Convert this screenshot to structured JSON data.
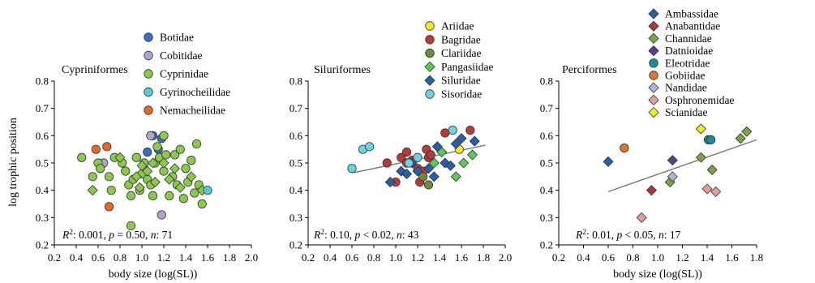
{
  "figure": {
    "ylabel": "log trophic position"
  },
  "chart_data": [
    {
      "type": "scatter",
      "title": "Cypriniformes",
      "xlabel": "body size (log(SL))",
      "xlim": [
        0.2,
        2.0
      ],
      "ylim": [
        0.2,
        0.8
      ],
      "xticks": [
        "0.2",
        "0.4",
        "0.6",
        "0.8",
        "1.0",
        "1.2",
        "1.4",
        "1.6",
        "1.8",
        "2.0"
      ],
      "yticks": [
        "0.2",
        "0.3",
        "0.4",
        "0.5",
        "0.6",
        "0.7",
        "0.8"
      ],
      "stats": {
        "r2_label": "R",
        "r2_sup": "2",
        "rest": ": 0.001, p = 0.50, n: 71"
      },
      "legend_position": "top-right",
      "series": [
        {
          "name": "Botidae",
          "marker": "circle",
          "color": "#3a6fc0",
          "points": [
            [
              1.05,
              0.54
            ],
            [
              1.1,
              0.6
            ],
            [
              1.15,
              0.55
            ],
            [
              1.18,
              0.59
            ]
          ]
        },
        {
          "name": "Cobitidae",
          "marker": "circle",
          "color": "#b0a3cc",
          "points": [
            [
              0.65,
              0.5
            ],
            [
              1.08,
              0.6
            ],
            [
              1.18,
              0.31
            ]
          ]
        },
        {
          "name": "Cyprinidae",
          "marker": "circle",
          "color": "#8cc850",
          "points": [
            [
              0.45,
              0.52
            ],
            [
              0.55,
              0.45
            ],
            [
              0.6,
              0.5
            ],
            [
              0.62,
              0.48
            ],
            [
              0.7,
              0.45
            ],
            [
              0.72,
              0.4
            ],
            [
              0.75,
              0.52
            ],
            [
              0.82,
              0.5
            ],
            [
              0.85,
              0.47
            ],
            [
              0.88,
              0.42
            ],
            [
              0.9,
              0.38
            ],
            [
              0.92,
              0.44
            ],
            [
              0.95,
              0.52
            ],
            [
              0.98,
              0.4
            ],
            [
              1.0,
              0.46
            ],
            [
              1.02,
              0.5
            ],
            [
              1.05,
              0.44
            ],
            [
              1.08,
              0.42
            ],
            [
              1.1,
              0.38
            ],
            [
              1.12,
              0.5
            ],
            [
              1.14,
              0.56
            ],
            [
              1.16,
              0.52
            ],
            [
              1.2,
              0.47
            ],
            [
              1.22,
              0.53
            ],
            [
              1.25,
              0.38
            ],
            [
              1.28,
              0.45
            ],
            [
              1.3,
              0.53
            ],
            [
              1.32,
              0.42
            ],
            [
              1.35,
              0.55
            ],
            [
              1.38,
              0.37
            ],
            [
              1.4,
              0.48
            ],
            [
              1.42,
              0.43
            ],
            [
              1.45,
              0.51
            ],
            [
              1.48,
              0.39
            ],
            [
              1.5,
              0.57
            ],
            [
              1.52,
              0.42
            ],
            [
              1.55,
              0.35
            ],
            [
              0.9,
              0.27
            ],
            [
              1.2,
              0.6
            ]
          ]
        },
        {
          "name": "Cyprinidae",
          "marker": "diamond",
          "color": "#8cc850",
          "points": [
            [
              0.55,
              0.4
            ],
            [
              0.8,
              0.52
            ],
            [
              0.95,
              0.45
            ],
            [
              1.0,
              0.49
            ],
            [
              1.05,
              0.47
            ],
            [
              1.1,
              0.5
            ],
            [
              1.12,
              0.43
            ],
            [
              1.2,
              0.5
            ],
            [
              1.25,
              0.44
            ],
            [
              1.3,
              0.48
            ],
            [
              1.35,
              0.41
            ],
            [
              1.45,
              0.45
            ],
            [
              1.55,
              0.4
            ],
            [
              0.98,
              0.41
            ]
          ]
        },
        {
          "name": "Gyrinocheilidae",
          "marker": "circle",
          "color": "#5cc8d8",
          "points": [
            [
              1.6,
              0.4
            ]
          ]
        },
        {
          "name": "Nemacheilidae",
          "marker": "circle",
          "color": "#e36a2a",
          "points": [
            [
              0.58,
              0.55
            ],
            [
              0.68,
              0.56
            ],
            [
              0.7,
              0.34
            ]
          ]
        }
      ],
      "legend": [
        {
          "name": "Botidae",
          "marker": "circle",
          "color": "#3a6fc0"
        },
        {
          "name": "Cobitidae",
          "marker": "circle",
          "color": "#b0a3cc"
        },
        {
          "name": "Cyprinidae",
          "marker": "circle",
          "color": "#8cc850"
        },
        {
          "name": "Gyrinocheilidae",
          "marker": "circle",
          "color": "#5cc8d8"
        },
        {
          "name": "Nemacheilidae",
          "marker": "circle",
          "color": "#e36a2a"
        }
      ]
    },
    {
      "type": "scatter",
      "title": "Siluriformes",
      "xlabel": "",
      "xlim": [
        0.2,
        2.0
      ],
      "ylim": [
        0.2,
        0.8
      ],
      "xticks": [
        "0.2",
        "0.4",
        "0.6",
        "0.8",
        "1.0",
        "1.2",
        "1.4",
        "1.6",
        "1.8",
        "2.0"
      ],
      "yticks": [
        "0.2",
        "0.3",
        "0.4",
        "0.5",
        "0.6",
        "0.7",
        "0.8"
      ],
      "stats": {
        "r2_label": "R",
        "r2_sup": "2",
        "rest": ": 0.10, p < 0.02, n: 43"
      },
      "fit": {
        "x": [
          0.62,
          1.82
        ],
        "y": [
          0.465,
          0.565
        ]
      },
      "legend_position": "top-right",
      "series": [
        {
          "name": "Ariidae",
          "marker": "circle",
          "color": "#f2e82a",
          "points": [
            [
              1.58,
              0.55
            ]
          ]
        },
        {
          "name": "Bagridae",
          "marker": "circle",
          "color": "#b73a3a",
          "points": [
            [
              0.92,
              0.5
            ],
            [
              1.0,
              0.43
            ],
            [
              1.05,
              0.52
            ],
            [
              1.1,
              0.5
            ],
            [
              1.15,
              0.51
            ],
            [
              1.2,
              0.48
            ],
            [
              1.25,
              0.47
            ],
            [
              1.28,
              0.55
            ],
            [
              1.3,
              0.52
            ],
            [
              1.32,
              0.53
            ],
            [
              1.22,
              0.43
            ],
            [
              1.45,
              0.61
            ],
            [
              1.68,
              0.62
            ],
            [
              1.1,
              0.54
            ]
          ]
        },
        {
          "name": "Clariidae",
          "marker": "circle",
          "color": "#6f8a3a",
          "points": [
            [
              1.25,
              0.45
            ],
            [
              1.3,
              0.42
            ]
          ]
        },
        {
          "name": "Pangasiidae",
          "marker": "diamond",
          "color": "#5cc85a",
          "points": [
            [
              1.35,
              0.5
            ],
            [
              1.42,
              0.54
            ],
            [
              1.55,
              0.45
            ],
            [
              1.62,
              0.5
            ],
            [
              1.7,
              0.53
            ]
          ]
        },
        {
          "name": "Siluridae",
          "marker": "diamond",
          "color": "#2a5fa8",
          "points": [
            [
              0.95,
              0.43
            ],
            [
              1.05,
              0.47
            ],
            [
              1.1,
              0.46
            ],
            [
              1.15,
              0.5
            ],
            [
              1.2,
              0.47
            ],
            [
              1.3,
              0.48
            ],
            [
              1.38,
              0.56
            ],
            [
              1.45,
              0.5
            ],
            [
              1.5,
              0.49
            ],
            [
              1.55,
              0.57
            ],
            [
              1.6,
              0.59
            ],
            [
              1.72,
              0.58
            ],
            [
              1.35,
              0.45
            ]
          ]
        },
        {
          "name": "Sisoridae",
          "marker": "circle",
          "color": "#6fd0e0",
          "points": [
            [
              0.6,
              0.48
            ],
            [
              0.7,
              0.55
            ],
            [
              0.76,
              0.56
            ],
            [
              1.2,
              0.52
            ],
            [
              1.52,
              0.62
            ],
            [
              1.12,
              0.5
            ]
          ]
        }
      ],
      "legend": [
        {
          "name": "Ariidae",
          "marker": "circle",
          "color": "#f2e82a"
        },
        {
          "name": "Bagridae",
          "marker": "circle",
          "color": "#b73a3a"
        },
        {
          "name": "Clariidae",
          "marker": "circle",
          "color": "#6f8a3a"
        },
        {
          "name": "Pangasiidae",
          "marker": "diamond",
          "color": "#5cc85a"
        },
        {
          "name": "Siluridae",
          "marker": "diamond",
          "color": "#2a5fa8"
        },
        {
          "name": "Sisoridae",
          "marker": "circle",
          "color": "#6fd0e0"
        }
      ]
    },
    {
      "type": "scatter",
      "title": "Perciformes",
      "xlabel": "body size (log(SL))",
      "xlim": [
        0.2,
        1.8
      ],
      "ylim": [
        0.2,
        0.8
      ],
      "xticks": [
        "0.2",
        "0.4",
        "0.6",
        "0.8",
        "1.0",
        "1.2",
        "1.4",
        "1.6",
        "1.8"
      ],
      "yticks": [
        "0.2",
        "0.3",
        "0.4",
        "0.5",
        "0.6",
        "0.7",
        "0.8"
      ],
      "stats": {
        "r2_label": "R",
        "r2_sup": "2",
        "rest": ": 0.01, p < 0.05, n: 17"
      },
      "fit": {
        "x": [
          0.6,
          1.8
        ],
        "y": [
          0.395,
          0.585
        ]
      },
      "legend_position": "top-right",
      "series": [
        {
          "name": "Ambassidae",
          "marker": "diamond",
          "color": "#2a5fa8",
          "points": [
            [
              0.6,
              0.505
            ]
          ]
        },
        {
          "name": "Anabantidae",
          "marker": "diamond",
          "color": "#a83a3a",
          "points": [
            [
              0.95,
              0.4
            ]
          ]
        },
        {
          "name": "Channidae",
          "marker": "diamond",
          "color": "#7ea04a",
          "points": [
            [
              1.1,
              0.43
            ],
            [
              1.35,
              0.52
            ],
            [
              1.44,
              0.475
            ],
            [
              1.67,
              0.59
            ],
            [
              1.72,
              0.615
            ]
          ]
        },
        {
          "name": "Datnioidae",
          "marker": "diamond",
          "color": "#5a3f8a",
          "points": [
            [
              1.12,
              0.51
            ]
          ]
        },
        {
          "name": "Eleotridae",
          "marker": "circle",
          "color": "#1f8a98",
          "points": [
            [
              1.41,
              0.585
            ],
            [
              1.43,
              0.585
            ]
          ]
        },
        {
          "name": "Gobiidae",
          "marker": "circle",
          "color": "#d9762e",
          "points": [
            [
              0.73,
              0.555
            ]
          ]
        },
        {
          "name": "Nandidae",
          "marker": "diamond",
          "color": "#a8b8d8",
          "points": [
            [
              1.12,
              0.45
            ]
          ]
        },
        {
          "name": "Osphronemidae",
          "marker": "diamond",
          "color": "#e0a0a0",
          "points": [
            [
              0.87,
              0.3
            ],
            [
              1.4,
              0.405
            ],
            [
              1.47,
              0.395
            ]
          ]
        },
        {
          "name": "Scianidae",
          "marker": "diamond",
          "color": "#f2e82a",
          "points": [
            [
              1.35,
              0.625
            ]
          ]
        }
      ],
      "legend": [
        {
          "name": "Ambassidae",
          "marker": "diamond",
          "color": "#2a5fa8"
        },
        {
          "name": "Anabantidae",
          "marker": "diamond",
          "color": "#a83a3a"
        },
        {
          "name": "Channidae",
          "marker": "diamond",
          "color": "#7ea04a"
        },
        {
          "name": "Datnioidae",
          "marker": "diamond",
          "color": "#5a3f8a"
        },
        {
          "name": "Eleotridae",
          "marker": "circle",
          "color": "#1f8a98"
        },
        {
          "name": "Gobiidae",
          "marker": "circle",
          "color": "#d9762e"
        },
        {
          "name": "Nandidae",
          "marker": "diamond",
          "color": "#a8b8d8"
        },
        {
          "name": "Osphronemidae",
          "marker": "diamond",
          "color": "#e0a0a0"
        },
        {
          "name": "Scianidae",
          "marker": "diamond",
          "color": "#f2e82a"
        }
      ]
    }
  ]
}
